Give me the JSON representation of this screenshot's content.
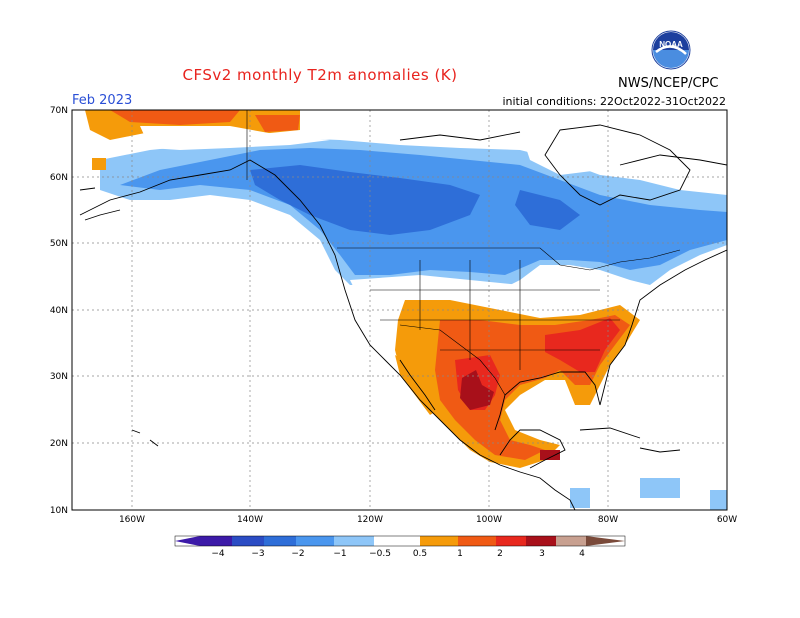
{
  "header": {
    "title": "CFSv2 monthly T2m anomalies (K)",
    "month": "Feb 2023",
    "initial_conditions": "initial conditions: 22Oct2022-31Oct2022",
    "agency": "NWS/NCEP/CPC",
    "logo_text": "NOAA"
  },
  "map": {
    "lat_labels": [
      "70N",
      "60N",
      "50N",
      "40N",
      "30N",
      "20N",
      "10N"
    ],
    "lon_labels": [
      "160W",
      "140W",
      "120W",
      "100W",
      "80W",
      "60W"
    ],
    "colors": {
      "cold_4": "#3c1aa8",
      "cold_3": "#2b4cc4",
      "cold_2": "#2e6ed8",
      "cold_1": "#4a96ee",
      "cold_05": "#8ec6f8",
      "warm_05": "#f59b0a",
      "warm_1": "#f05a14",
      "warm_2": "#e8281e",
      "warm_3": "#a8101a",
      "warm_4": "#c8a090",
      "warm_5": "#7a4a3a"
    }
  },
  "colorbar": {
    "labels": [
      "−4",
      "−3",
      "−2",
      "−1",
      "−0.5",
      "0.5",
      "1",
      "2",
      "3",
      "4"
    ]
  }
}
